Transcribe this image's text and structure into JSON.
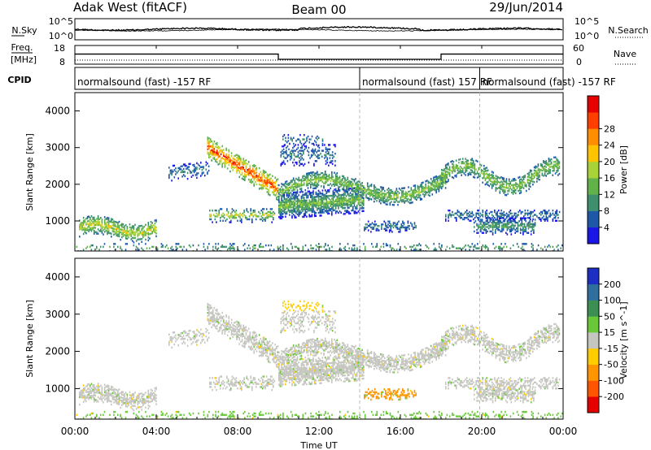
{
  "header": {
    "left": "Adak West (fitACF)",
    "center": "Beam 00",
    "right": "29/Jun/2014"
  },
  "labels": {
    "nsky": "N.Sky",
    "nsearch": "N.Search",
    "freq_line1": "Freq.",
    "freq_line2": "[MHz]",
    "nave": "Nave",
    "cpid": "CPID"
  },
  "noise_axis": {
    "top": "10^5",
    "bottom": "10^0"
  },
  "freq_axis": {
    "top": "18",
    "bottom": "8"
  },
  "nave_axis": {
    "top": "60",
    "bottom": "0"
  },
  "cpid_segments": [
    {
      "start_hour": 0,
      "label": "normalsound (fast) -157 RF"
    },
    {
      "start_hour": 14,
      "label": "normalsound (fast) 157 RF"
    },
    {
      "start_hour": 19.9,
      "label": "normalsound (fast) -157 RF"
    }
  ],
  "frequency_steps": [
    {
      "start_hour": 0,
      "end_hour": 10,
      "level": 13.4
    },
    {
      "start_hour": 10,
      "end_hour": 18,
      "level": 10.6
    },
    {
      "start_hour": 18,
      "end_hour": 24,
      "level": 13.4
    }
  ],
  "chart_data": [
    {
      "type": "heatmap",
      "name": "power",
      "ylabel": "Slant Range [km]",
      "yticks": [
        1000,
        2000,
        3000,
        4000
      ],
      "ylim": [
        180,
        4500
      ],
      "colorbar": {
        "label": "Power [dB]",
        "ticks": [
          "4",
          "8",
          "12",
          "16",
          "20",
          "24",
          "28"
        ],
        "colors": [
          "#1a16e6",
          "#1d59a7",
          "#3e8f6e",
          "#62b24a",
          "#a8d238",
          "#ffc400",
          "#ff8f00",
          "#ff3f00",
          "#e60000"
        ]
      }
    },
    {
      "type": "heatmap",
      "name": "velocity",
      "xlabel": "Time UT",
      "ylabel": "Slant Range [km]",
      "yticks": [
        1000,
        2000,
        3000,
        4000
      ],
      "ylim": [
        180,
        4500
      ],
      "xticks": [
        "00:00",
        "04:00",
        "08:00",
        "12:00",
        "16:00",
        "20:00",
        "00:00"
      ],
      "xlim": [
        0,
        24
      ],
      "colorbar": {
        "label": "Velocity [m s^-1]",
        "ticks": [
          "200",
          "100",
          "50",
          "15",
          "-15",
          "-50",
          "-100",
          "-200"
        ],
        "colors": [
          "#1c2fc2",
          "#2f6f9e",
          "#3c8f52",
          "#69c83a",
          "#c6c6c0",
          "#ffcc00",
          "#ff9500",
          "#ff5500",
          "#e50000"
        ]
      }
    }
  ]
}
